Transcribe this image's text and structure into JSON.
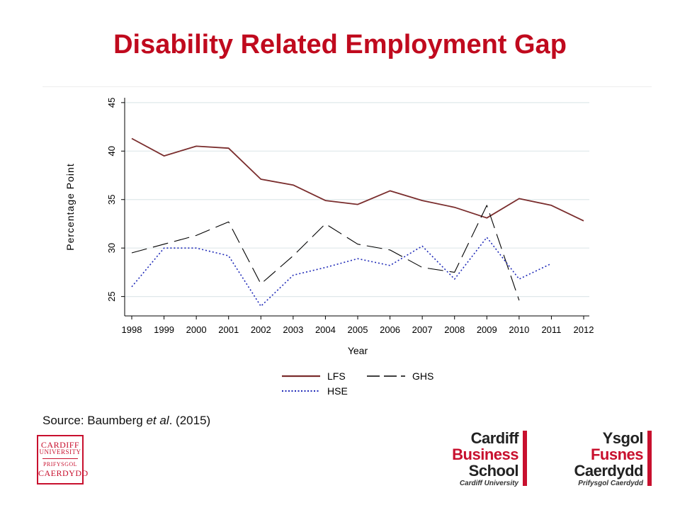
{
  "slide": {
    "title": "Disability Related Employment Gap",
    "source_prefix": "Source: Baumberg ",
    "source_italic": "et al",
    "source_suffix": ". (2015)"
  },
  "logos": {
    "cardiff_university": {
      "line1": "CARDIFF",
      "line2": "UNIVERSITY",
      "line3": "PRIFYSGOL",
      "line4": "CAERDYDD",
      "color": "#c8102e"
    },
    "business_school_en": {
      "line1": "Cardiff",
      "line2": "Business",
      "line3": "School",
      "sub": "Cardiff University"
    },
    "business_school_cy": {
      "line1": "Ysgol",
      "line2": "Fusnes",
      "line3": "Caerdydd",
      "sub": "Prifysgol Caerdydd"
    }
  },
  "colors": {
    "title": "#c00a1e",
    "accent_red": "#c8102e",
    "lfs": "#7a2d2d",
    "ghs": "#000000",
    "hse": "#1f2ab8",
    "grid": "#dfe8ea"
  },
  "chart_data": {
    "type": "line",
    "xlabel": "Year",
    "ylabel": "Percentage Point",
    "x": [
      1998,
      1999,
      2000,
      2001,
      2002,
      2003,
      2004,
      2005,
      2006,
      2007,
      2008,
      2009,
      2010,
      2011,
      2012
    ],
    "xticks": [
      "1998",
      "1999",
      "2000",
      "2001",
      "2002",
      "2003",
      "2004",
      "2005",
      "2006",
      "2007",
      "2008",
      "2009",
      "2010",
      "2011",
      "2012"
    ],
    "yticks": [
      "25",
      "30",
      "35",
      "40",
      "45"
    ],
    "ylim": [
      23,
      45.5
    ],
    "grid": true,
    "legend_position": "bottom",
    "series": [
      {
        "name": "LFS",
        "style": "solid",
        "color": "#7a2d2d",
        "values": [
          41.3,
          39.5,
          40.5,
          40.3,
          37.1,
          36.5,
          34.9,
          34.5,
          35.9,
          34.9,
          34.2,
          33.1,
          35.1,
          34.4,
          32.8
        ]
      },
      {
        "name": "GHS",
        "style": "longdash",
        "color": "#000000",
        "values": [
          29.5,
          30.4,
          31.3,
          32.7,
          26.3,
          29.2,
          32.5,
          30.4,
          29.8,
          28.0,
          27.5,
          34.4,
          24.6,
          null,
          null
        ]
      },
      {
        "name": "HSE",
        "style": "dot",
        "color": "#1f2ab8",
        "values": [
          26.0,
          30.0,
          30.0,
          29.2,
          24.0,
          27.2,
          28.0,
          28.9,
          28.2,
          30.2,
          26.8,
          31.1,
          26.8,
          28.4,
          null
        ]
      }
    ]
  }
}
